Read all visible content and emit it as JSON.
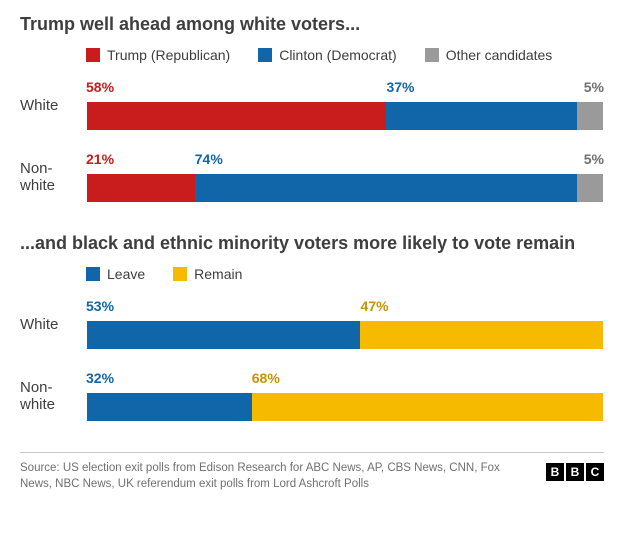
{
  "colors": {
    "red": "#c91d1d",
    "blue": "#1066a9",
    "grey": "#9a9a9a",
    "yellow": "#f6bb00",
    "text": "#3e3e3e"
  },
  "fonts": {
    "title_size": 18,
    "label_size": 15,
    "value_size": 14,
    "legend_size": 14,
    "source_size": 11.5
  },
  "chart1": {
    "title": "Trump well ahead among white voters...",
    "type": "stacked-bar-horizontal",
    "legend": [
      {
        "label": "Trump (Republican)",
        "color": "#c91d1d"
      },
      {
        "label": "Clinton (Democrat)",
        "color": "#1066a9"
      },
      {
        "label": "Other candidates",
        "color": "#9a9a9a"
      }
    ],
    "rows": [
      {
        "label": "White",
        "segments": [
          {
            "value": 58,
            "display": "58%",
            "color": "#c91d1d",
            "label_color": "#c91d1d"
          },
          {
            "value": 37,
            "display": "37%",
            "color": "#1066a9",
            "label_color": "#1066a9"
          },
          {
            "value": 5,
            "display": "5%",
            "color": "#9a9a9a",
            "label_color": "#707070",
            "align_right": true
          }
        ]
      },
      {
        "label": "Non-white",
        "segments": [
          {
            "value": 21,
            "display": "21%",
            "color": "#c91d1d",
            "label_color": "#c91d1d"
          },
          {
            "value": 74,
            "display": "74%",
            "color": "#1066a9",
            "label_color": "#1066a9"
          },
          {
            "value": 5,
            "display": "5%",
            "color": "#9a9a9a",
            "label_color": "#707070",
            "align_right": true
          }
        ]
      }
    ]
  },
  "chart2": {
    "title": "...and black and ethnic minority voters more likely to vote remain",
    "type": "stacked-bar-horizontal",
    "legend": [
      {
        "label": "Leave",
        "color": "#1066a9"
      },
      {
        "label": "Remain",
        "color": "#f6bb00"
      }
    ],
    "rows": [
      {
        "label": "White",
        "segments": [
          {
            "value": 53,
            "display": "53%",
            "color": "#1066a9",
            "label_color": "#1066a9"
          },
          {
            "value": 47,
            "display": "47%",
            "color": "#f6bb00",
            "label_color": "#c79300"
          }
        ]
      },
      {
        "label": "Non-white",
        "segments": [
          {
            "value": 32,
            "display": "32%",
            "color": "#1066a9",
            "label_color": "#1066a9"
          },
          {
            "value": 68,
            "display": "68%",
            "color": "#f6bb00",
            "label_color": "#c79300"
          }
        ]
      }
    ]
  },
  "source": "Source: US election exit polls from Edison Research for ABC News, AP, CBS News, CNN, Fox News, NBC News, UK referendum exit polls from Lord Ashcroft Polls",
  "logo": [
    "B",
    "B",
    "C"
  ]
}
